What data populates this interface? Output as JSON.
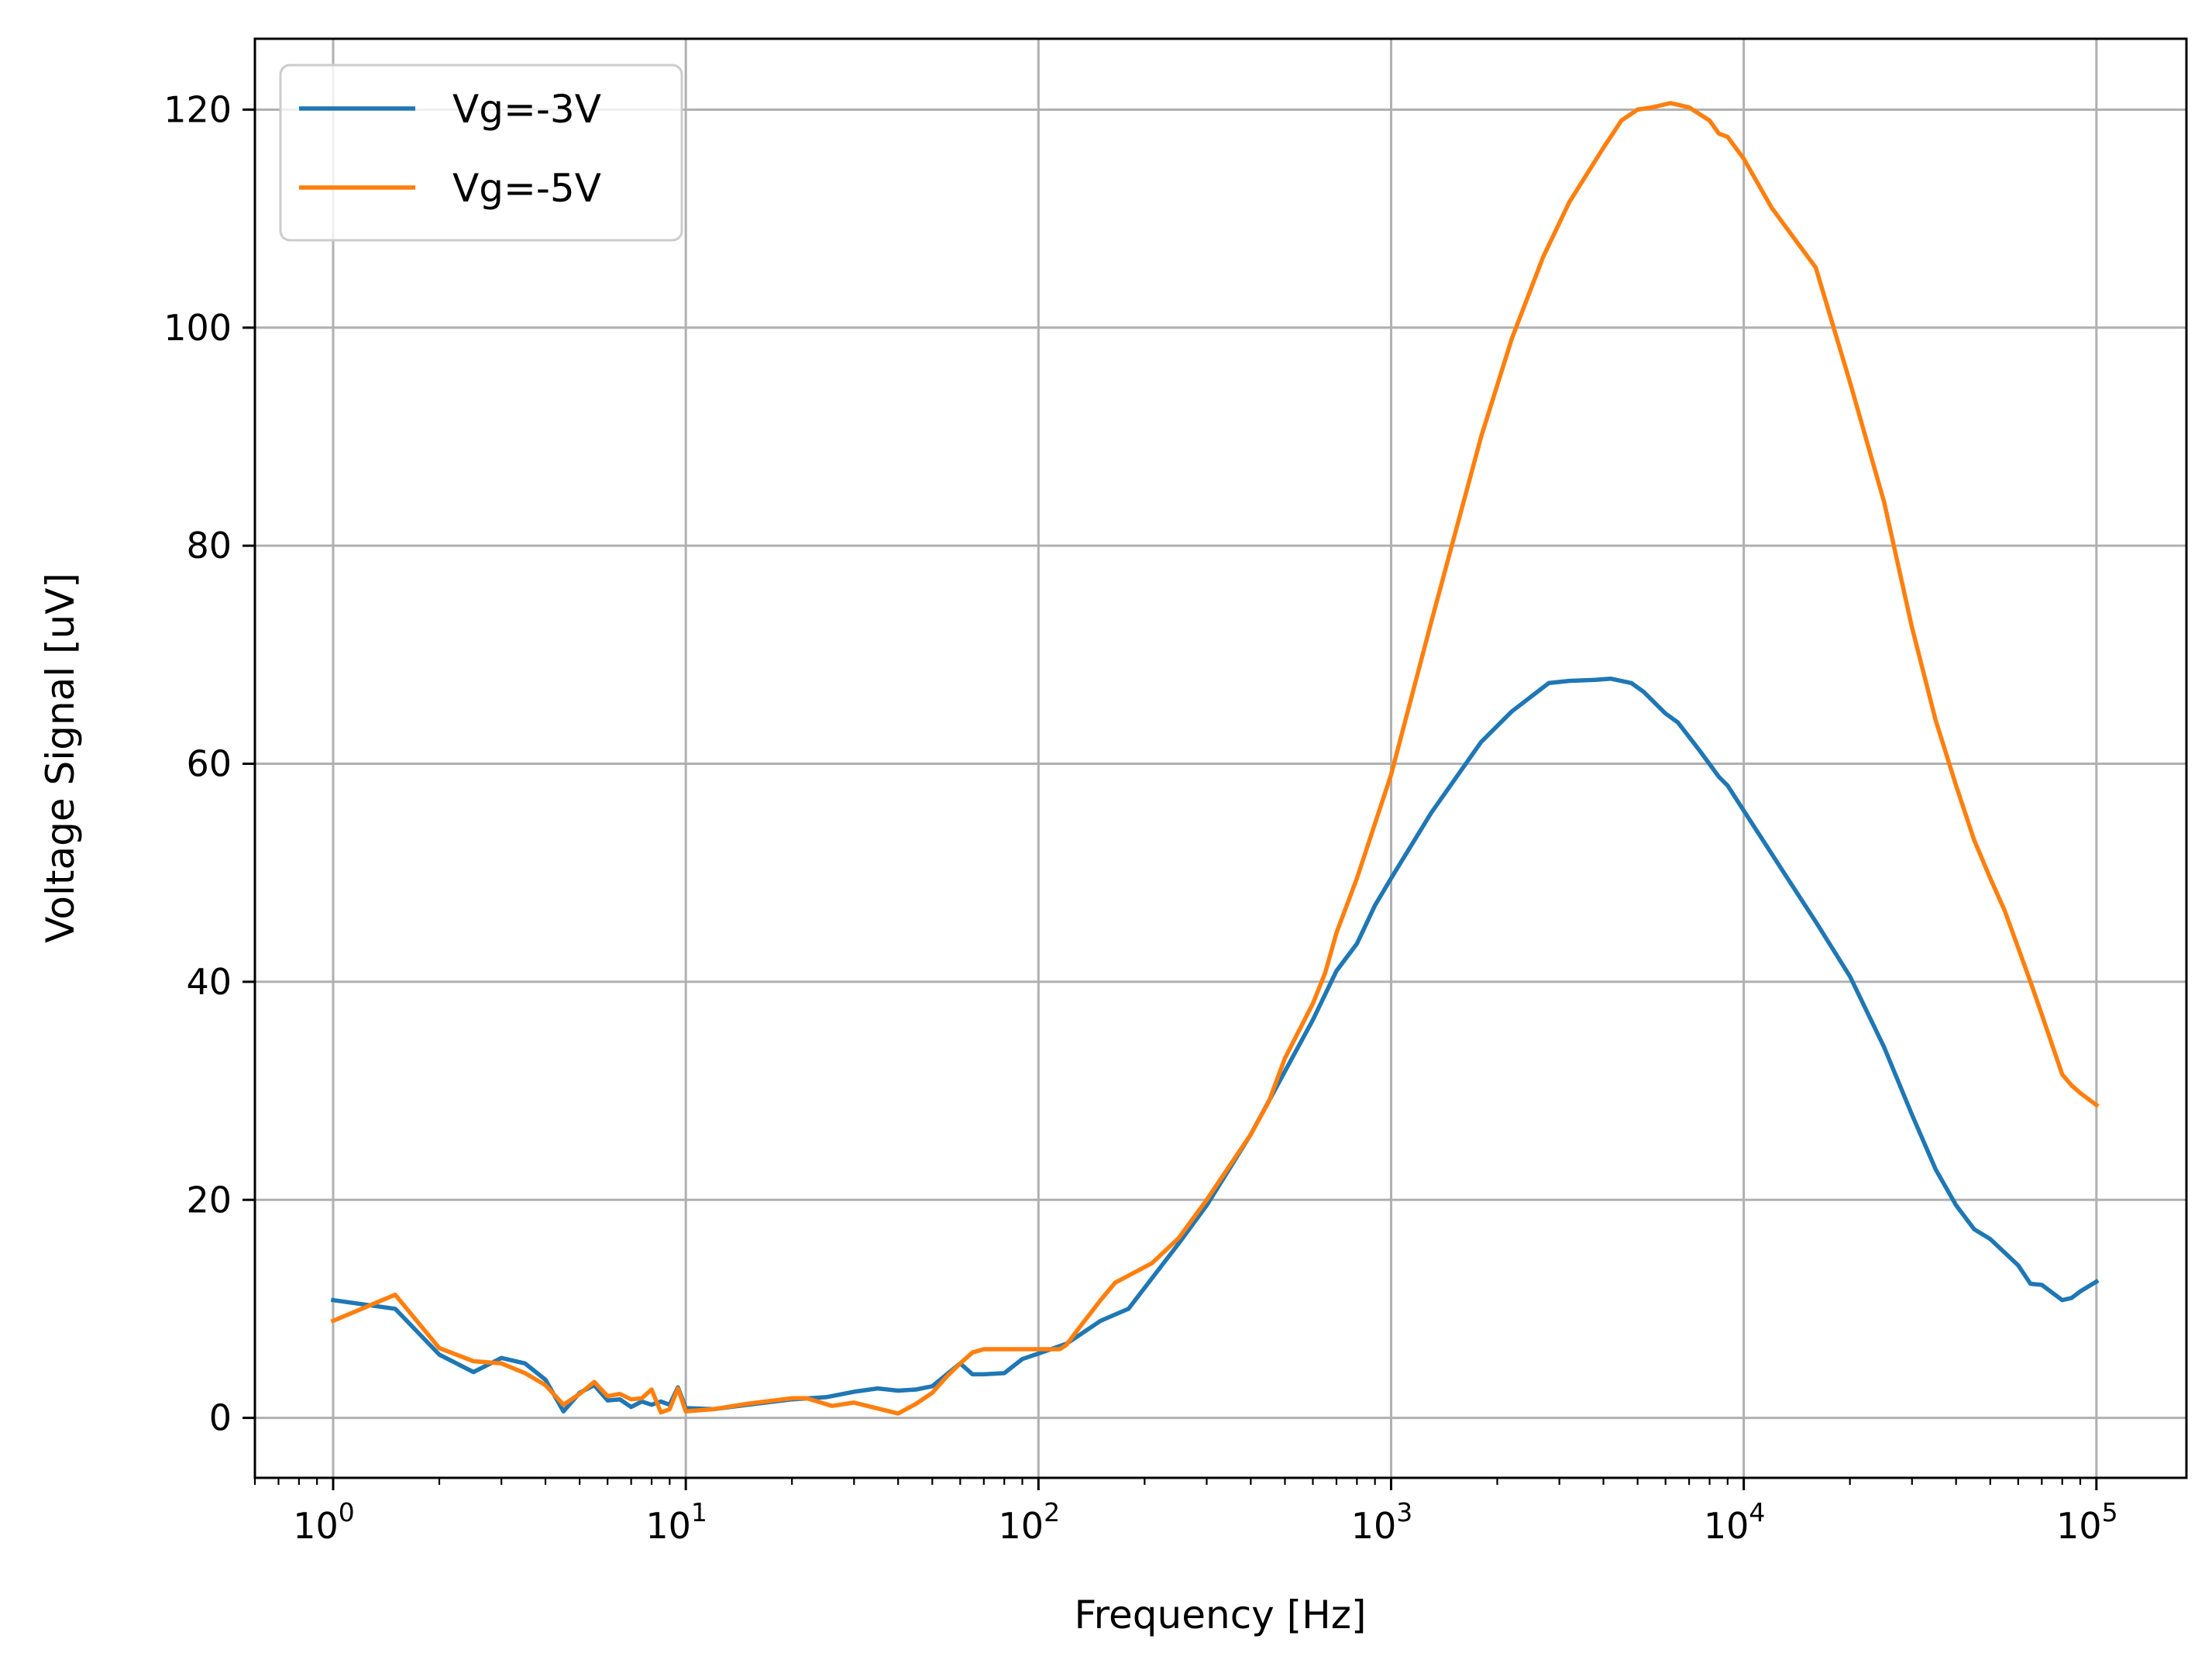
{
  "chart_data": {
    "type": "line",
    "title": "",
    "xlabel": "Frequency [Hz]",
    "ylabel": "Voltage Signal [uV]",
    "xscale": "log",
    "xlim": [
      0.6,
      180000
    ],
    "ylim": [
      -5.5,
      126.5
    ],
    "x_ticks": [
      {
        "value": 1,
        "base": "10",
        "exp": "0"
      },
      {
        "value": 10,
        "base": "10",
        "exp": "1"
      },
      {
        "value": 100,
        "base": "10",
        "exp": "2"
      },
      {
        "value": 1000,
        "base": "10",
        "exp": "3"
      },
      {
        "value": 10000,
        "base": "10",
        "exp": "4"
      },
      {
        "value": 100000,
        "base": "10",
        "exp": "5"
      }
    ],
    "y_ticks": [
      {
        "value": 0,
        "label": "0"
      },
      {
        "value": 20,
        "label": "20"
      },
      {
        "value": 40,
        "label": "40"
      },
      {
        "value": 60,
        "label": "60"
      },
      {
        "value": 80,
        "label": "80"
      },
      {
        "value": 100,
        "label": "100"
      },
      {
        "value": 120,
        "label": "120"
      }
    ],
    "grid": true,
    "legend": "top-left",
    "series": [
      {
        "name": "Vg=-3V",
        "color": "#1f77b4",
        "points": [
          [
            1,
            10.8
          ],
          [
            1.5,
            10.0
          ],
          [
            2,
            5.8
          ],
          [
            2.5,
            4.2
          ],
          [
            3,
            5.5
          ],
          [
            3.5,
            5.0
          ],
          [
            4,
            3.5
          ],
          [
            4.5,
            0.6
          ],
          [
            5,
            2.3
          ],
          [
            5.5,
            3.0
          ],
          [
            6,
            1.6
          ],
          [
            6.5,
            1.7
          ],
          [
            7,
            1.0
          ],
          [
            7.5,
            1.5
          ],
          [
            8,
            1.2
          ],
          [
            8.5,
            1.5
          ],
          [
            9,
            1.2
          ],
          [
            9.5,
            2.8
          ],
          [
            10,
            0.9
          ],
          [
            12,
            0.8
          ],
          [
            15,
            1.2
          ],
          [
            20,
            1.7
          ],
          [
            25,
            1.9
          ],
          [
            30,
            2.4
          ],
          [
            35,
            2.7
          ],
          [
            40,
            2.5
          ],
          [
            45,
            2.6
          ],
          [
            50,
            2.9
          ],
          [
            60,
            5.0
          ],
          [
            65,
            4.0
          ],
          [
            70,
            4.0
          ],
          [
            80,
            4.1
          ],
          [
            90,
            5.4
          ],
          [
            100,
            5.9
          ],
          [
            120,
            6.8
          ],
          [
            150,
            8.9
          ],
          [
            180,
            10.0
          ],
          [
            250,
            16.0
          ],
          [
            300,
            19.5
          ],
          [
            400,
            26.0
          ],
          [
            500,
            31.8
          ],
          [
            600,
            36.5
          ],
          [
            700,
            41.0
          ],
          [
            800,
            43.5
          ],
          [
            900,
            47.0
          ],
          [
            1000,
            49.5
          ],
          [
            1300,
            55.5
          ],
          [
            1800,
            62.0
          ],
          [
            2200,
            64.8
          ],
          [
            2800,
            67.4
          ],
          [
            3200,
            67.6
          ],
          [
            3800,
            67.7
          ],
          [
            4200,
            67.8
          ],
          [
            4800,
            67.4
          ],
          [
            5200,
            66.6
          ],
          [
            6000,
            64.6
          ],
          [
            6500,
            63.8
          ],
          [
            7500,
            61.2
          ],
          [
            8500,
            58.8
          ],
          [
            9000,
            58.0
          ],
          [
            10000,
            55.7
          ],
          [
            13000,
            50.0
          ],
          [
            16000,
            45.5
          ],
          [
            20000,
            40.5
          ],
          [
            25000,
            34.0
          ],
          [
            30000,
            27.8
          ],
          [
            35000,
            22.8
          ],
          [
            40000,
            19.5
          ],
          [
            45000,
            17.3
          ],
          [
            50000,
            16.4
          ],
          [
            60000,
            14.0
          ],
          [
            65000,
            12.3
          ],
          [
            70000,
            12.2
          ],
          [
            80000,
            10.8
          ],
          [
            85000,
            11.0
          ],
          [
            90000,
            11.6
          ],
          [
            100000,
            12.5
          ]
        ]
      },
      {
        "name": "Vg=-5V",
        "color": "#ff7f0e",
        "points": [
          [
            1,
            8.9
          ],
          [
            1.5,
            11.3
          ],
          [
            2,
            6.4
          ],
          [
            2.5,
            5.2
          ],
          [
            3,
            5.0
          ],
          [
            3.5,
            4.1
          ],
          [
            4,
            3.0
          ],
          [
            4.5,
            1.2
          ],
          [
            5,
            2.2
          ],
          [
            5.5,
            3.3
          ],
          [
            6,
            2.0
          ],
          [
            6.5,
            2.2
          ],
          [
            7,
            1.7
          ],
          [
            7.5,
            1.8
          ],
          [
            8,
            2.6
          ],
          [
            8.5,
            0.5
          ],
          [
            9,
            0.8
          ],
          [
            9.5,
            2.7
          ],
          [
            10,
            0.6
          ],
          [
            12,
            0.8
          ],
          [
            15,
            1.3
          ],
          [
            20,
            1.8
          ],
          [
            22,
            1.8
          ],
          [
            26,
            1.1
          ],
          [
            30,
            1.4
          ],
          [
            40,
            0.4
          ],
          [
            45,
            1.3
          ],
          [
            50,
            2.3
          ],
          [
            55,
            3.8
          ],
          [
            60,
            5.0
          ],
          [
            65,
            6.0
          ],
          [
            70,
            6.3
          ],
          [
            80,
            6.3
          ],
          [
            100,
            6.3
          ],
          [
            115,
            6.3
          ],
          [
            120,
            6.7
          ],
          [
            130,
            8.2
          ],
          [
            150,
            10.8
          ],
          [
            165,
            12.4
          ],
          [
            210,
            14.2
          ],
          [
            250,
            16.5
          ],
          [
            300,
            20.0
          ],
          [
            400,
            26.0
          ],
          [
            450,
            29.0
          ],
          [
            500,
            33.0
          ],
          [
            600,
            38.0
          ],
          [
            650,
            40.8
          ],
          [
            700,
            44.5
          ],
          [
            800,
            49.5
          ],
          [
            900,
            54.5
          ],
          [
            1000,
            59.0
          ],
          [
            1300,
            73.0
          ],
          [
            1800,
            90.0
          ],
          [
            2200,
            99.0
          ],
          [
            2700,
            106.5
          ],
          [
            3200,
            111.5
          ],
          [
            4000,
            116.5
          ],
          [
            4500,
            119.0
          ],
          [
            5000,
            120.0
          ],
          [
            5500,
            120.2
          ],
          [
            6200,
            120.6
          ],
          [
            7000,
            120.2
          ],
          [
            8000,
            119.0
          ],
          [
            8500,
            117.8
          ],
          [
            9000,
            117.5
          ],
          [
            10000,
            115.5
          ],
          [
            12000,
            111.0
          ],
          [
            16000,
            105.5
          ],
          [
            20000,
            95.0
          ],
          [
            25000,
            84.0
          ],
          [
            30000,
            72.5
          ],
          [
            35000,
            64.0
          ],
          [
            40000,
            58.0
          ],
          [
            45000,
            53.0
          ],
          [
            50000,
            49.5
          ],
          [
            55000,
            46.5
          ],
          [
            65000,
            40.0
          ],
          [
            70000,
            37.0
          ],
          [
            80000,
            31.5
          ],
          [
            85000,
            30.5
          ],
          [
            90000,
            29.8
          ],
          [
            100000,
            28.7
          ]
        ]
      }
    ]
  }
}
